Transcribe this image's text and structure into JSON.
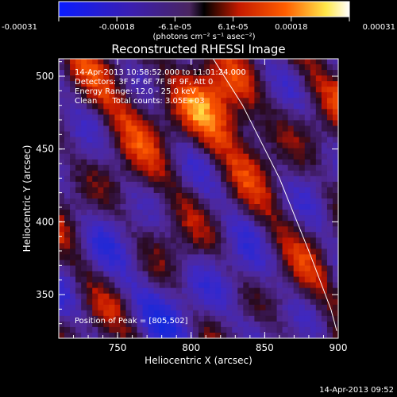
{
  "chart_data": {
    "type": "heatmap",
    "title": "Reconstructed RHESSI Image",
    "xlabel": "Heliocentric X (arcsec)",
    "ylabel": "Heliocentric Y (arcsec)",
    "xlim": [
      710,
      900
    ],
    "ylim": [
      320,
      512
    ],
    "x_ticks": [
      "750",
      "800",
      "850",
      "900"
    ],
    "x_tick_values": [
      750,
      800,
      850,
      900
    ],
    "y_ticks": [
      "350",
      "400",
      "450",
      "500"
    ],
    "y_tick_values": [
      350,
      400,
      450,
      500
    ],
    "colorbar": {
      "range": [
        -0.00031,
        0.00031
      ],
      "tick_labels": [
        "-0.00031",
        "-0.00018",
        "-6.1e-05",
        "6.1e-05",
        "0.00018",
        "0.00031"
      ],
      "units": "(photons cm⁻² s⁻¹ asec⁻²)",
      "colors": [
        "#0a1cff",
        "#3b1fb0",
        "#5a2a6a",
        "#000000",
        "#c41a00",
        "#ff5e00",
        "#ffe84a",
        "#ffffff"
      ]
    },
    "annotations": [
      "14-Apr-2013 10:58:52.000 to 11:01:24.000",
      "Detectors: 3F 5F 6F 7F 8F 9F, Att 0",
      "Energy Range: 12.0 - 25.0 keV",
      "Clean      Total counts: 3.05E+03"
    ],
    "peak_label": "Position of Peak = [805,502]",
    "peak": {
      "x": 805,
      "y": 502
    },
    "limb_curve": [
      [
        815,
        512
      ],
      [
        835,
        480
      ],
      [
        860,
        430
      ],
      [
        880,
        380
      ],
      [
        895,
        340
      ],
      [
        899,
        325
      ]
    ],
    "footer_timestamp": "14-Apr-2013 09:52",
    "grid": false
  }
}
